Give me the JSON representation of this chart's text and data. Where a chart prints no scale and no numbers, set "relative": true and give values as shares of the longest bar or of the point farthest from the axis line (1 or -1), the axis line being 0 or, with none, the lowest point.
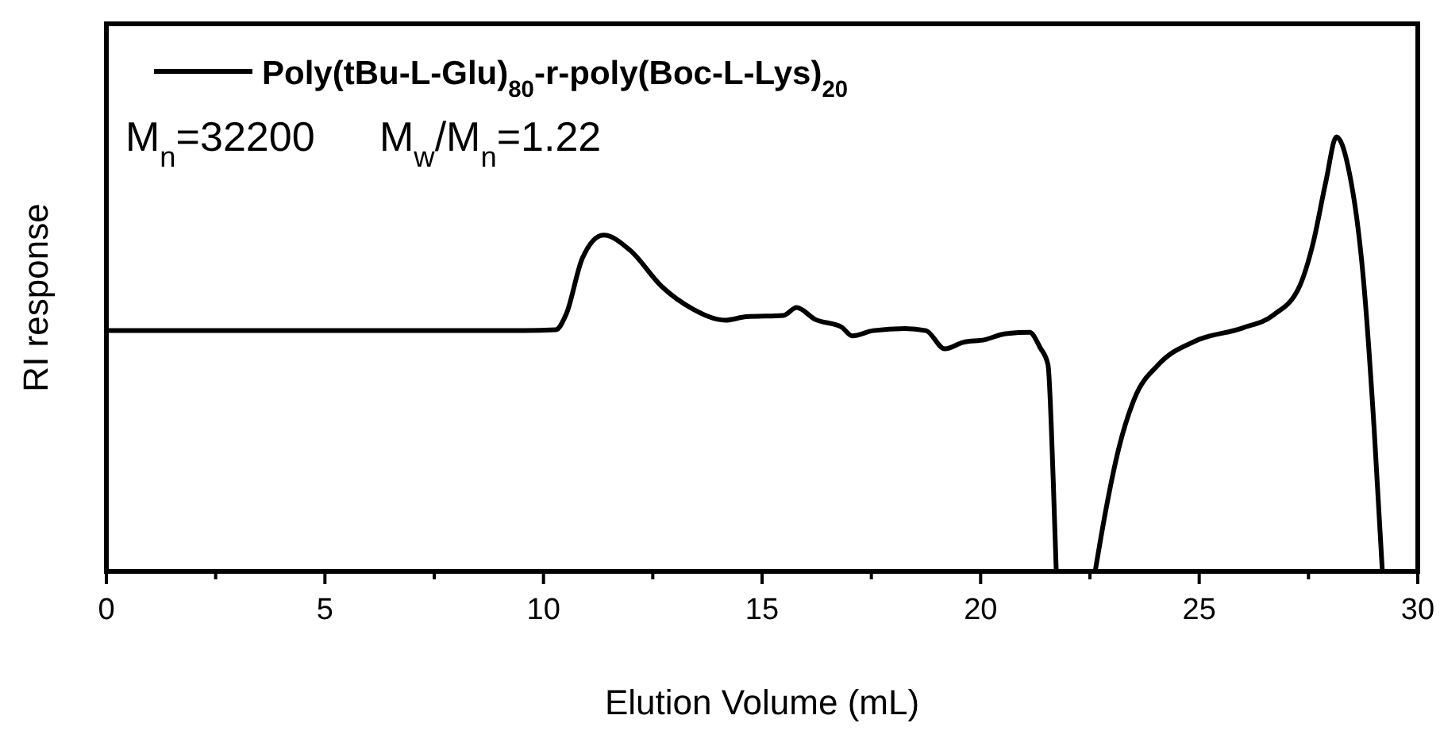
{
  "chart_data": {
    "type": "line",
    "relative": true,
    "xlabel": "Elution Volume (mL)",
    "ylabel": "RI response",
    "legend": "top left",
    "line_style": "solid",
    "grid": false,
    "xlim": [
      0,
      30
    ],
    "xticks": [
      0,
      {
        "value": 2.5,
        "label": null
      },
      5,
      {
        "value": 7.5,
        "label": null
      },
      10,
      {
        "value": 12.5,
        "label": null
      },
      15,
      {
        "value": 17.5,
        "label": null
      },
      20,
      {
        "value": 22.5,
        "label": null
      },
      25,
      {
        "value": 27.5,
        "label": null
      },
      30
    ],
    "annotations": [
      "M$_{n}$=32200",
      "M$_{w}$/M$_{n}$=1.22"
    ],
    "series": [
      {
        "name": "Poly(tBu-L-Glu)$_{80}$-r-poly(Boc-L-Lys)$_{20}$",
        "color": "#000000",
        "x": [
          0,
          9.55,
          10.28,
          10.52,
          10.89,
          11.37,
          11.98,
          12.7,
          13.43,
          14.16,
          14.64,
          15.49,
          15.79,
          16.21,
          16.82,
          17.06,
          17.54,
          18.27,
          18.75,
          19.18,
          19.6,
          20.09,
          20.57,
          21.12,
          21.36,
          21.54,
          21.66,
          21.73,
          22.2,
          22.62,
          22.86,
          23.16,
          23.52,
          24.07,
          24.91,
          25.99,
          26.7,
          27.3,
          27.6,
          27.9,
          28.14,
          28.4,
          28.77,
          29.0,
          29.19
        ],
        "values": [
          0.554,
          0.554,
          0.556,
          0.592,
          0.721,
          0.774,
          0.739,
          0.656,
          0.603,
          0.578,
          0.586,
          0.589,
          0.607,
          0.58,
          0.562,
          0.542,
          0.554,
          0.559,
          0.554,
          0.512,
          0.527,
          0.533,
          0.547,
          0.55,
          0.515,
          0.476,
          0.211,
          0,
          null,
          0,
          0.139,
          0.283,
          0.398,
          0.476,
          0.53,
          0.56,
          0.59,
          0.657,
          0.753,
          0.898,
          1,
          0.934,
          0.657,
          0.331,
          0
        ]
      }
    ]
  }
}
